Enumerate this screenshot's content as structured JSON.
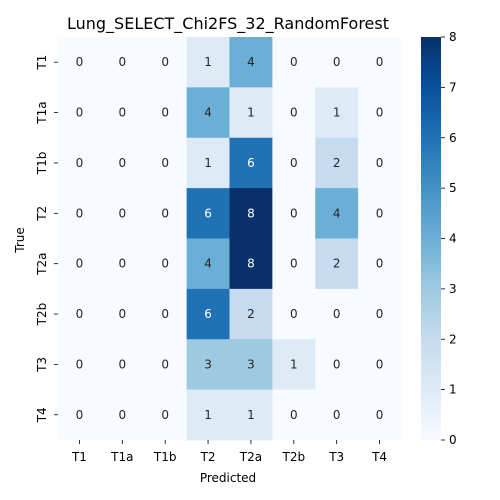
{
  "chart_data": {
    "type": "heatmap",
    "title": "Lung_SELECT_Chi2FS_32_RandomForest",
    "xlabel": "Predicted",
    "ylabel": "True",
    "x_categories": [
      "T1",
      "T1a",
      "T1b",
      "T2",
      "T2a",
      "T2b",
      "T3",
      "T4"
    ],
    "y_categories": [
      "T1",
      "T1a",
      "T1b",
      "T2",
      "T2a",
      "T2b",
      "T3",
      "T4"
    ],
    "values": [
      [
        0,
        0,
        0,
        1,
        4,
        0,
        0,
        0
      ],
      [
        0,
        0,
        0,
        4,
        1,
        0,
        1,
        0
      ],
      [
        0,
        0,
        0,
        1,
        6,
        0,
        2,
        0
      ],
      [
        0,
        0,
        0,
        6,
        8,
        0,
        4,
        0
      ],
      [
        0,
        0,
        0,
        4,
        8,
        0,
        2,
        0
      ],
      [
        0,
        0,
        0,
        6,
        2,
        0,
        0,
        0
      ],
      [
        0,
        0,
        0,
        3,
        3,
        1,
        0,
        0
      ],
      [
        0,
        0,
        0,
        1,
        1,
        0,
        0,
        0
      ]
    ],
    "colormap": "Blues",
    "vmin": 0,
    "vmax": 8,
    "colorbar_ticks": [
      0,
      1,
      2,
      3,
      4,
      5,
      6,
      7,
      8
    ]
  }
}
